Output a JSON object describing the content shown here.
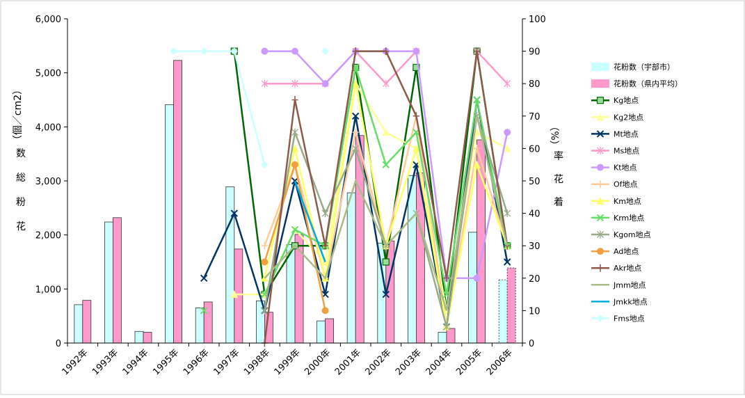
{
  "chart_data": {
    "type": "bar+line",
    "title": "",
    "categories": [
      "1992年",
      "1993年",
      "1994年",
      "1995年",
      "1996年",
      "1997年",
      "1998年",
      "1999年",
      "2000年",
      "2001年",
      "2002年",
      "2003年",
      "2004年",
      "2005年",
      "2006年"
    ],
    "y_left": {
      "label_chars": [
        "花",
        "粉",
        "総",
        "数",
        "（個／cm2）"
      ],
      "range": [
        0,
        6000
      ],
      "ticks": [
        "0",
        "1,000",
        "2,000",
        "3,000",
        "4,000",
        "5,000",
        "6,000"
      ],
      "tick_values": [
        0,
        1000,
        2000,
        3000,
        4000,
        5000,
        6000
      ]
    },
    "y_right": {
      "label_chars": [
        "着",
        "花",
        "率",
        "（%）"
      ],
      "range": [
        0,
        100
      ],
      "ticks": [
        "0",
        "10",
        "20",
        "30",
        "40",
        "50",
        "60",
        "70",
        "80",
        "90",
        "100"
      ],
      "tick_values": [
        0,
        10,
        20,
        30,
        40,
        50,
        60,
        70,
        80,
        90,
        100
      ]
    },
    "bar_series": [
      {
        "name": "花粉数（宇部市）",
        "color": "#ccffff",
        "stroke": "#333333",
        "values": [
          710,
          2240,
          215,
          4410,
          650,
          2890,
          780,
          1820,
          410,
          2780,
          1850,
          3100,
          200,
          2050,
          1170
        ],
        "dashed_last": true
      },
      {
        "name": "花粉数（県内平均）",
        "color": "#ff99cc",
        "stroke": "#333333",
        "values": [
          790,
          2320,
          200,
          5230,
          760,
          1740,
          570,
          2010,
          450,
          3840,
          1890,
          3150,
          270,
          3760,
          1390
        ],
        "dashed_last": true
      }
    ],
    "line_series": [
      {
        "name": "Kg地点",
        "color": "#006600",
        "marker": "square-open",
        "values": [
          null,
          null,
          null,
          null,
          null,
          90,
          15,
          30,
          30,
          85,
          25,
          85,
          10,
          90,
          30
        ]
      },
      {
        "name": "Kg2地点",
        "color": "#ffff99",
        "marker": "tri",
        "values": [
          null,
          null,
          null,
          null,
          null,
          15,
          15,
          35,
          25,
          80,
          65,
          60,
          10,
          65,
          60
        ]
      },
      {
        "name": "Mt地点",
        "color": "#003366",
        "marker": "x",
        "values": [
          null,
          null,
          null,
          null,
          20,
          40,
          10,
          50,
          15,
          70,
          15,
          55,
          5,
          75,
          25
        ]
      },
      {
        "name": "Ms地点",
        "color": "#ff99cc",
        "marker": "star",
        "values": [
          null,
          null,
          null,
          null,
          null,
          null,
          80,
          80,
          80,
          90,
          80,
          90,
          null,
          90,
          80
        ]
      },
      {
        "name": "Kt地点",
        "color": "#cc99ff",
        "marker": "circle",
        "values": [
          null,
          null,
          null,
          null,
          null,
          null,
          90,
          90,
          80,
          90,
          90,
          90,
          20,
          20,
          65
        ]
      },
      {
        "name": "Of地点",
        "color": "#ffcc99",
        "marker": "plus",
        "values": [
          null,
          null,
          null,
          null,
          null,
          null,
          30,
          55,
          20,
          65,
          30,
          70,
          5,
          60,
          30
        ]
      },
      {
        "name": "Km地点",
        "color": "#ffff66",
        "marker": "tri",
        "values": [
          null,
          null,
          null,
          null,
          null,
          null,
          20,
          60,
          20,
          80,
          30,
          60,
          5,
          55,
          30
        ]
      },
      {
        "name": "Krm地点",
        "color": "#66dd66",
        "marker": "x",
        "values": [
          null,
          null,
          null,
          null,
          10,
          null,
          15,
          35,
          30,
          85,
          55,
          65,
          15,
          75,
          30
        ]
      },
      {
        "name": "Kgom地点",
        "color": "#99aa88",
        "marker": "star",
        "values": [
          null,
          null,
          null,
          null,
          null,
          null,
          10,
          65,
          40,
          60,
          30,
          40,
          5,
          70,
          40
        ]
      },
      {
        "name": "Ad地点",
        "color": "#f0a040",
        "marker": "circle",
        "values": [
          null,
          null,
          null,
          null,
          null,
          null,
          25,
          55,
          10,
          null,
          null,
          null,
          null,
          null,
          null
        ]
      },
      {
        "name": "Akr地点",
        "color": "#8b5a4a",
        "marker": "plus",
        "values": [
          null,
          null,
          null,
          null,
          null,
          null,
          0,
          75,
          30,
          90,
          90,
          70,
          20,
          90,
          30
        ]
      },
      {
        "name": "Jmm地点",
        "color": "#aabb88",
        "marker": "none",
        "values": [
          null,
          null,
          null,
          null,
          null,
          null,
          20,
          30,
          20,
          50,
          30,
          40,
          10,
          70,
          30
        ]
      },
      {
        "name": "Jmkk地点",
        "color": "#00aadd",
        "marker": "none",
        "values": [
          null,
          null,
          null,
          null,
          null,
          null,
          null,
          50,
          25,
          null,
          null,
          null,
          null,
          null,
          null
        ]
      },
      {
        "name": "Fms地点",
        "color": "#ccffff",
        "marker": "diamond",
        "values": [
          null,
          null,
          null,
          90,
          90,
          90,
          55,
          null,
          90,
          null,
          null,
          null,
          null,
          null,
          null
        ]
      }
    ],
    "grid": false,
    "legend_placement": "right"
  }
}
